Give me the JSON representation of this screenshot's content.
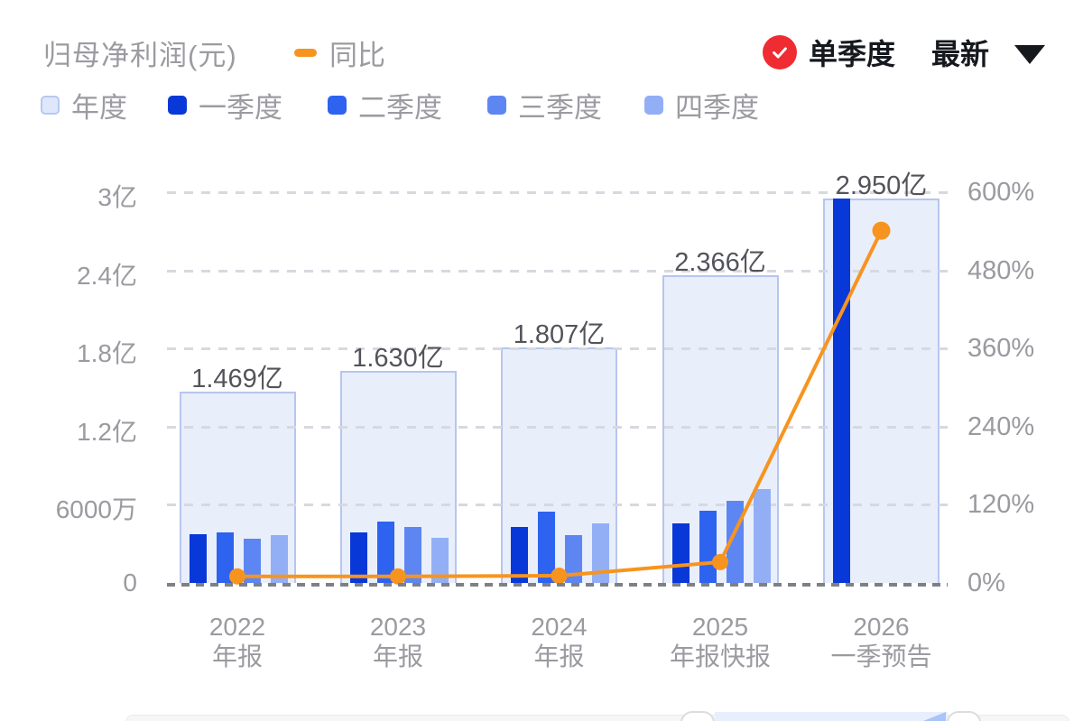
{
  "header": {
    "title": "归母净利润(元)",
    "line_legend": "同比",
    "quarter_toggle": "单季度",
    "latest_label": "最新"
  },
  "colors": {
    "yoy_line": "#f7941f",
    "annual_fill": "#e9eefb",
    "annual_border": "#b7c6ee",
    "q1": "#0938d8",
    "q2": "#2e63f0",
    "q3": "#5d86f2",
    "q4": "#92aff6",
    "check_badge": "#ee2c32"
  },
  "legend": [
    {
      "label": "年度",
      "fill": "#dfe8fb",
      "border": "#b7c8f0"
    },
    {
      "label": "一季度",
      "fill": "#0938d8",
      "border": "#0938d8"
    },
    {
      "label": "二季度",
      "fill": "#2e63f0",
      "border": "#2e63f0"
    },
    {
      "label": "三季度",
      "fill": "#5d86f2",
      "border": "#5d86f2"
    },
    {
      "label": "四季度",
      "fill": "#92aff6",
      "border": "#92aff6"
    }
  ],
  "chart_data": {
    "type": "bar",
    "title": "归母净利润(元)",
    "categories": [
      "2022 年报",
      "2023 年报",
      "2024 年报",
      "2025 年报快报",
      "2026 一季预告"
    ],
    "x_labels": [
      {
        "year": "2022",
        "sub": "年报"
      },
      {
        "year": "2023",
        "sub": "年报"
      },
      {
        "year": "2024",
        "sub": "年报"
      },
      {
        "year": "2025",
        "sub": "年报快报"
      },
      {
        "year": "2026",
        "sub": "一季预告"
      }
    ],
    "annual_series": {
      "name": "年度",
      "values_yi": [
        1.469,
        1.63,
        1.807,
        2.366,
        2.95
      ],
      "labels": [
        "1.469亿",
        "1.630亿",
        "1.807亿",
        "2.366亿",
        "2.950亿"
      ]
    },
    "quarter_series": [
      {
        "name": "一季度",
        "values_yi": [
          0.372,
          0.386,
          0.432,
          0.46,
          2.95
        ]
      },
      {
        "name": "二季度",
        "values_yi": [
          0.39,
          0.468,
          0.55,
          0.555,
          null
        ]
      },
      {
        "name": "三季度",
        "values_yi": [
          0.341,
          0.43,
          0.369,
          0.63,
          null
        ]
      },
      {
        "name": "四季度",
        "values_yi": [
          0.366,
          0.346,
          0.456,
          0.721,
          null
        ]
      }
    ],
    "line_series": {
      "name": "同比",
      "values_pct": [
        10,
        10,
        11,
        32,
        541
      ]
    },
    "left_axis_ticks": [
      "3亿",
      "2.4亿",
      "1.8亿",
      "1.2亿",
      "6000万",
      "0"
    ],
    "right_axis_ticks": [
      "600%",
      "480%",
      "360%",
      "240%",
      "120%",
      "0%"
    ],
    "ylim_left_yi": [
      0,
      3
    ],
    "ylim_right_pct": [
      0,
      600
    ],
    "grid": "horizontal dashed",
    "legend_position": "top-left"
  }
}
